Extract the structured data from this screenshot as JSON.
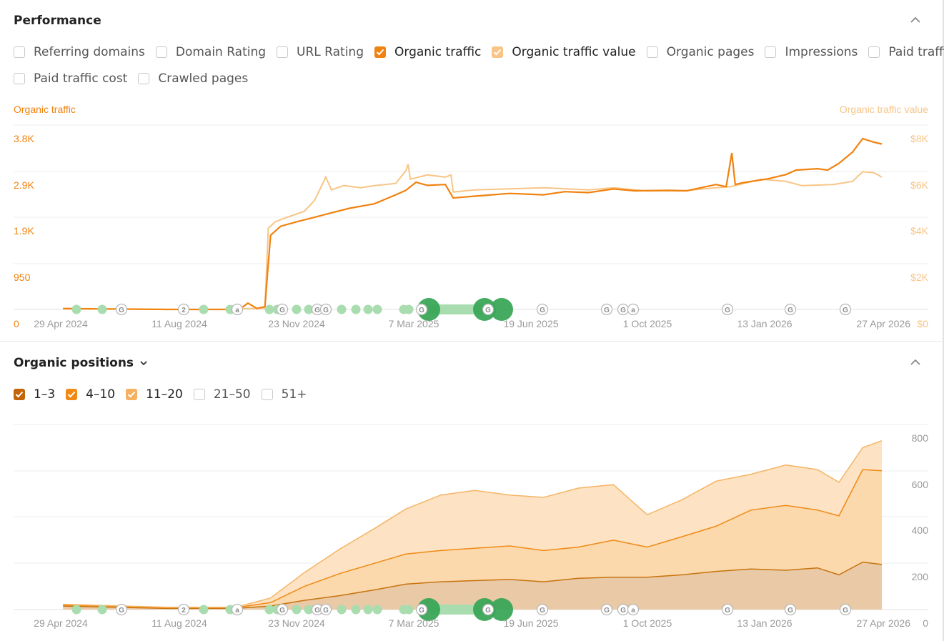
{
  "performance": {
    "title": "Performance",
    "metrics": [
      {
        "label": "Referring domains",
        "checked": false
      },
      {
        "label": "Domain Rating",
        "checked": false
      },
      {
        "label": "URL Rating",
        "checked": false
      },
      {
        "label": "Organic traffic",
        "checked": true,
        "color": "#f0820f"
      },
      {
        "label": "Organic traffic value",
        "checked": true,
        "color": "#f8c586"
      },
      {
        "label": "Organic pages",
        "checked": false
      },
      {
        "label": "Impressions",
        "checked": false
      },
      {
        "label": "Paid traffic",
        "checked": false
      },
      {
        "label": "Paid traffic cost",
        "checked": false
      },
      {
        "label": "Crawled pages",
        "checked": false
      }
    ]
  },
  "positions": {
    "title": "Organic positions",
    "filters": [
      {
        "label": "1–3",
        "checked": true,
        "color": "#c2650a"
      },
      {
        "label": "4–10",
        "checked": true,
        "color": "#f08a14"
      },
      {
        "label": "11–20",
        "checked": true,
        "color": "#f5b060"
      },
      {
        "label": "21–50",
        "checked": false
      },
      {
        "label": "51+",
        "checked": false
      }
    ]
  },
  "colors": {
    "traffic": "#f0820f",
    "traffic_value": "#f8c586",
    "axis_left": "#f0820f",
    "axis_right": "#f8c586",
    "band_1_3": "#e9c9a6",
    "band_4_10": "#fbd9ad",
    "band_11_20": "#fde2c3",
    "line_1_3": "#c8730e",
    "line_4_10": "#f08a14",
    "line_11_20": "#f5b565",
    "marker_green": "#3aa657",
    "marker_light_green": "#a9dcae"
  },
  "chart_data": [
    {
      "type": "line",
      "left_axis_title": "Organic traffic",
      "right_axis_title": "Organic traffic value",
      "x_ticks": [
        "29 Apr 2024",
        "11 Aug 2024",
        "23 Nov 2024",
        "7 Mar 2025",
        "19 Jun 2025",
        "1 Oct 2025",
        "13 Jan 2026",
        "27 Apr 2026"
      ],
      "y_left_ticks": [
        "0",
        "950",
        "1.9K",
        "2.9K",
        "3.8K"
      ],
      "y_right_ticks": [
        "$0",
        "$2K",
        "$4K",
        "$6K",
        "$8K"
      ],
      "ylim_left": [
        0,
        3800
      ],
      "ylim_right": [
        0,
        8000
      ],
      "series": [
        {
          "name": "Organic traffic",
          "axis": "left",
          "x": [
            "2024-05-01",
            "2024-08-01",
            "2024-09-28",
            "2024-10-05",
            "2024-10-12",
            "2024-10-20",
            "2024-10-27",
            "2024-11-01",
            "2024-11-10",
            "2024-11-24",
            "2024-12-10",
            "2024-12-25",
            "2025-01-10",
            "2025-02-01",
            "2025-02-20",
            "2025-03-01",
            "2025-03-10",
            "2025-03-20",
            "2025-04-05",
            "2025-04-12",
            "2025-05-01",
            "2025-06-01",
            "2025-07-01",
            "2025-07-20",
            "2025-08-10",
            "2025-09-01",
            "2025-09-20",
            "2025-10-20",
            "2025-11-05",
            "2025-11-20",
            "2025-12-01",
            "2025-12-10",
            "2025-12-15",
            "2025-12-18",
            "2025-12-25",
            "2026-01-15",
            "2026-02-01",
            "2026-02-10",
            "2026-03-01",
            "2026-03-10",
            "2026-03-20",
            "2026-04-01",
            "2026-04-10",
            "2026-04-20",
            "2026-04-27"
          ],
          "y": [
            20,
            0,
            0,
            10,
            140,
            20,
            60,
            1650,
            1850,
            1950,
            2050,
            2150,
            2250,
            2350,
            2550,
            2650,
            2830,
            2760,
            2780,
            2480,
            2520,
            2580,
            2550,
            2620,
            2600,
            2680,
            2640,
            2650,
            2640,
            2720,
            2780,
            2730,
            3480,
            2780,
            2820,
            2900,
            3000,
            3100,
            3130,
            3100,
            3250,
            3500,
            3800,
            3720,
            3680
          ]
        },
        {
          "name": "Organic traffic value",
          "axis": "right",
          "x": [
            "2024-05-01",
            "2024-08-01",
            "2024-09-28",
            "2024-10-12",
            "2024-10-27",
            "2024-10-30",
            "2024-11-05",
            "2024-11-15",
            "2024-12-01",
            "2024-12-10",
            "2024-12-20",
            "2024-12-25",
            "2025-01-05",
            "2025-01-20",
            "2025-02-01",
            "2025-02-20",
            "2025-03-01",
            "2025-03-03",
            "2025-03-05",
            "2025-03-20",
            "2025-04-05",
            "2025-04-10",
            "2025-04-12",
            "2025-05-01",
            "2025-06-01",
            "2025-07-01",
            "2025-08-10",
            "2025-09-01",
            "2025-10-01",
            "2025-11-01",
            "2025-12-01",
            "2025-12-14",
            "2025-12-18",
            "2026-01-10",
            "2026-02-01",
            "2026-02-15",
            "2026-03-15",
            "2026-04-01",
            "2026-04-10",
            "2026-04-20",
            "2026-04-27"
          ],
          "y": [
            20,
            0,
            0,
            40,
            60,
            3800,
            4100,
            4300,
            4600,
            5100,
            6200,
            5600,
            5800,
            5700,
            5800,
            5900,
            6500,
            6800,
            6100,
            6300,
            6200,
            6300,
            5500,
            5600,
            5650,
            5700,
            5600,
            5700,
            5550,
            5550,
            5700,
            5750,
            5800,
            6100,
            6000,
            5800,
            5850,
            6000,
            6450,
            6400,
            6200
          ]
        }
      ],
      "event_markers": [
        "2",
        "a",
        "G",
        "a"
      ]
    },
    {
      "type": "area",
      "x_ticks": [
        "29 Apr 2024",
        "11 Aug 2024",
        "23 Nov 2024",
        "7 Mar 2025",
        "19 Jun 2025",
        "1 Oct 2025",
        "13 Jan 2026",
        "27 Apr 2026"
      ],
      "y_right_ticks": [
        "0",
        "200",
        "400",
        "600",
        "800"
      ],
      "ylim": [
        0,
        800
      ],
      "stacked": true,
      "series": [
        {
          "name": "1–3",
          "x": [
            "2024-05-01",
            "2024-08-01",
            "2024-10-01",
            "2024-11-01",
            "2024-12-01",
            "2025-01-01",
            "2025-02-01",
            "2025-03-01",
            "2025-04-01",
            "2025-05-01",
            "2025-06-01",
            "2025-07-01",
            "2025-08-01",
            "2025-09-01",
            "2025-10-01",
            "2025-11-01",
            "2025-12-01",
            "2026-01-01",
            "2026-02-01",
            "2026-03-01",
            "2026-03-20",
            "2026-04-10",
            "2026-04-27"
          ],
          "y": [
            15,
            5,
            5,
            15,
            40,
            60,
            85,
            110,
            120,
            125,
            130,
            120,
            135,
            140,
            140,
            150,
            165,
            175,
            170,
            180,
            150,
            205,
            195
          ]
        },
        {
          "name": "4–10",
          "x": [
            "2024-05-01",
            "2024-08-01",
            "2024-10-01",
            "2024-11-01",
            "2024-12-01",
            "2025-01-01",
            "2025-02-01",
            "2025-03-01",
            "2025-04-01",
            "2025-05-01",
            "2025-06-01",
            "2025-07-01",
            "2025-08-01",
            "2025-09-01",
            "2025-10-01",
            "2025-11-01",
            "2025-12-01",
            "2026-01-01",
            "2026-02-01",
            "2026-03-01",
            "2026-03-20",
            "2026-04-10",
            "2026-04-27"
          ],
          "y": [
            5,
            3,
            3,
            15,
            60,
            95,
            115,
            130,
            135,
            140,
            145,
            135,
            135,
            160,
            130,
            165,
            195,
            255,
            280,
            250,
            255,
            400,
            405
          ]
        },
        {
          "name": "11–20",
          "x": [
            "2024-05-01",
            "2024-08-01",
            "2024-10-01",
            "2024-11-01",
            "2024-12-01",
            "2025-01-01",
            "2025-02-01",
            "2025-03-01",
            "2025-04-01",
            "2025-05-01",
            "2025-06-01",
            "2025-07-01",
            "2025-08-01",
            "2025-09-01",
            "2025-10-01",
            "2025-11-01",
            "2025-12-01",
            "2026-01-01",
            "2026-02-01",
            "2026-03-01",
            "2026-03-20",
            "2026-04-10",
            "2026-04-27"
          ],
          "y": [
            3,
            2,
            2,
            20,
            60,
            105,
            150,
            195,
            240,
            250,
            220,
            230,
            255,
            240,
            140,
            160,
            195,
            155,
            175,
            175,
            145,
            95,
            130
          ]
        }
      ],
      "event_markers": [
        "2",
        "a",
        "G",
        "a"
      ]
    }
  ]
}
